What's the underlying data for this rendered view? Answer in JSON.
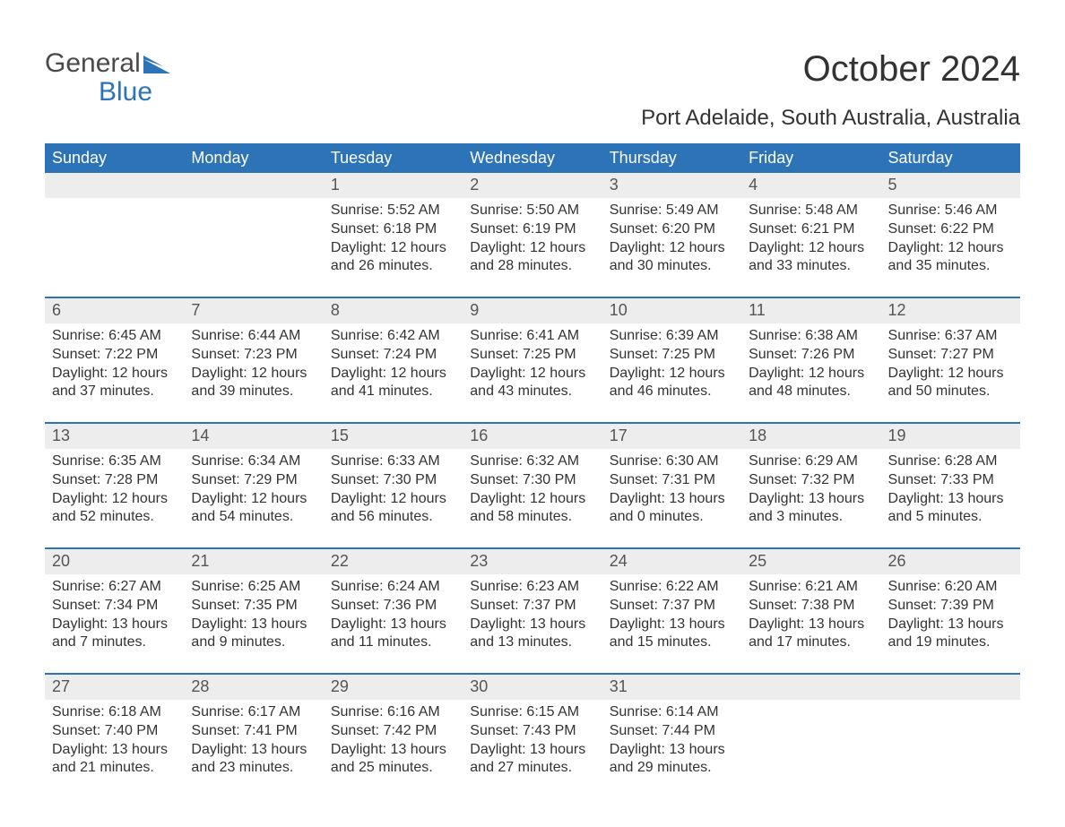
{
  "logo": {
    "word1": "General",
    "word2": "Blue",
    "icon_color": "#2d73b8"
  },
  "title": "October 2024",
  "location": "Port Adelaide, South Australia, Australia",
  "colors": {
    "header_bg": "#2d73b8",
    "header_text": "#ffffff",
    "daynum_bg": "#ededed",
    "week_border": "#2d73b8",
    "body_text": "#333333",
    "page_bg": "#ffffff"
  },
  "daynames": [
    "Sunday",
    "Monday",
    "Tuesday",
    "Wednesday",
    "Thursday",
    "Friday",
    "Saturday"
  ],
  "labels": {
    "sunrise": "Sunrise:",
    "sunset": "Sunset:",
    "daylight": "Daylight:"
  },
  "weeks": [
    [
      {
        "day": null
      },
      {
        "day": null
      },
      {
        "day": 1,
        "sunrise": "5:52 AM",
        "sunset": "6:18 PM",
        "daylight": "12 hours and 26 minutes."
      },
      {
        "day": 2,
        "sunrise": "5:50 AM",
        "sunset": "6:19 PM",
        "daylight": "12 hours and 28 minutes."
      },
      {
        "day": 3,
        "sunrise": "5:49 AM",
        "sunset": "6:20 PM",
        "daylight": "12 hours and 30 minutes."
      },
      {
        "day": 4,
        "sunrise": "5:48 AM",
        "sunset": "6:21 PM",
        "daylight": "12 hours and 33 minutes."
      },
      {
        "day": 5,
        "sunrise": "5:46 AM",
        "sunset": "6:22 PM",
        "daylight": "12 hours and 35 minutes."
      }
    ],
    [
      {
        "day": 6,
        "sunrise": "6:45 AM",
        "sunset": "7:22 PM",
        "daylight": "12 hours and 37 minutes."
      },
      {
        "day": 7,
        "sunrise": "6:44 AM",
        "sunset": "7:23 PM",
        "daylight": "12 hours and 39 minutes."
      },
      {
        "day": 8,
        "sunrise": "6:42 AM",
        "sunset": "7:24 PM",
        "daylight": "12 hours and 41 minutes."
      },
      {
        "day": 9,
        "sunrise": "6:41 AM",
        "sunset": "7:25 PM",
        "daylight": "12 hours and 43 minutes."
      },
      {
        "day": 10,
        "sunrise": "6:39 AM",
        "sunset": "7:25 PM",
        "daylight": "12 hours and 46 minutes."
      },
      {
        "day": 11,
        "sunrise": "6:38 AM",
        "sunset": "7:26 PM",
        "daylight": "12 hours and 48 minutes."
      },
      {
        "day": 12,
        "sunrise": "6:37 AM",
        "sunset": "7:27 PM",
        "daylight": "12 hours and 50 minutes."
      }
    ],
    [
      {
        "day": 13,
        "sunrise": "6:35 AM",
        "sunset": "7:28 PM",
        "daylight": "12 hours and 52 minutes."
      },
      {
        "day": 14,
        "sunrise": "6:34 AM",
        "sunset": "7:29 PM",
        "daylight": "12 hours and 54 minutes."
      },
      {
        "day": 15,
        "sunrise": "6:33 AM",
        "sunset": "7:30 PM",
        "daylight": "12 hours and 56 minutes."
      },
      {
        "day": 16,
        "sunrise": "6:32 AM",
        "sunset": "7:30 PM",
        "daylight": "12 hours and 58 minutes."
      },
      {
        "day": 17,
        "sunrise": "6:30 AM",
        "sunset": "7:31 PM",
        "daylight": "13 hours and 0 minutes."
      },
      {
        "day": 18,
        "sunrise": "6:29 AM",
        "sunset": "7:32 PM",
        "daylight": "13 hours and 3 minutes."
      },
      {
        "day": 19,
        "sunrise": "6:28 AM",
        "sunset": "7:33 PM",
        "daylight": "13 hours and 5 minutes."
      }
    ],
    [
      {
        "day": 20,
        "sunrise": "6:27 AM",
        "sunset": "7:34 PM",
        "daylight": "13 hours and 7 minutes."
      },
      {
        "day": 21,
        "sunrise": "6:25 AM",
        "sunset": "7:35 PM",
        "daylight": "13 hours and 9 minutes."
      },
      {
        "day": 22,
        "sunrise": "6:24 AM",
        "sunset": "7:36 PM",
        "daylight": "13 hours and 11 minutes."
      },
      {
        "day": 23,
        "sunrise": "6:23 AM",
        "sunset": "7:37 PM",
        "daylight": "13 hours and 13 minutes."
      },
      {
        "day": 24,
        "sunrise": "6:22 AM",
        "sunset": "7:37 PM",
        "daylight": "13 hours and 15 minutes."
      },
      {
        "day": 25,
        "sunrise": "6:21 AM",
        "sunset": "7:38 PM",
        "daylight": "13 hours and 17 minutes."
      },
      {
        "day": 26,
        "sunrise": "6:20 AM",
        "sunset": "7:39 PM",
        "daylight": "13 hours and 19 minutes."
      }
    ],
    [
      {
        "day": 27,
        "sunrise": "6:18 AM",
        "sunset": "7:40 PM",
        "daylight": "13 hours and 21 minutes."
      },
      {
        "day": 28,
        "sunrise": "6:17 AM",
        "sunset": "7:41 PM",
        "daylight": "13 hours and 23 minutes."
      },
      {
        "day": 29,
        "sunrise": "6:16 AM",
        "sunset": "7:42 PM",
        "daylight": "13 hours and 25 minutes."
      },
      {
        "day": 30,
        "sunrise": "6:15 AM",
        "sunset": "7:43 PM",
        "daylight": "13 hours and 27 minutes."
      },
      {
        "day": 31,
        "sunrise": "6:14 AM",
        "sunset": "7:44 PM",
        "daylight": "13 hours and 29 minutes."
      },
      {
        "day": null
      },
      {
        "day": null
      }
    ]
  ]
}
